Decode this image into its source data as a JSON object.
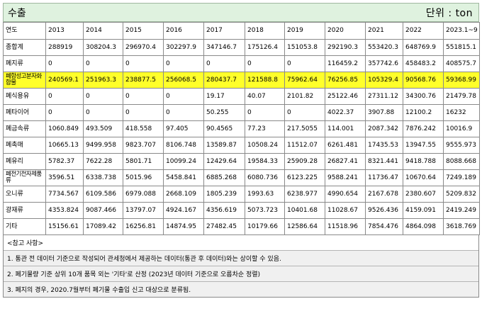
{
  "header": {
    "title": "수출",
    "unit": "단위 : ton"
  },
  "table": {
    "columns": [
      "연도",
      "2013",
      "2014",
      "2015",
      "2016",
      "2017",
      "2018",
      "2019",
      "2020",
      "2021",
      "2022",
      "2023.1~9"
    ],
    "rows": [
      {
        "label": "종합계",
        "values": [
          "288919",
          "308204.3",
          "296970.4",
          "302297.9",
          "347146.7",
          "175126.4",
          "151053.8",
          "292190.3",
          "553420.3",
          "648769.9",
          "551815.1"
        ]
      },
      {
        "label": "폐지류",
        "values": [
          "0",
          "0",
          "0",
          "0",
          "0",
          "0",
          "0",
          "116459.2",
          "357742.6",
          "458483.2",
          "408575.7"
        ]
      },
      {
        "label": "폐합성고분자화합물",
        "values": [
          "240569.1",
          "251963.3",
          "238877.5",
          "256068.5",
          "280437.7",
          "121588.8",
          "75962.64",
          "76256.85",
          "105329.4",
          "90568.76",
          "59368.99"
        ],
        "highlight": true
      },
      {
        "label": "폐식용유",
        "values": [
          "0",
          "0",
          "0",
          "0",
          "19.17",
          "40.07",
          "2101.82",
          "25122.46",
          "27311.12",
          "34300.76",
          "21479.78"
        ]
      },
      {
        "label": "폐타이어",
        "values": [
          "0",
          "0",
          "0",
          "0",
          "50.255",
          "0",
          "0",
          "4022.37",
          "3907.88",
          "12100.2",
          "16232"
        ]
      },
      {
        "label": "폐금속류",
        "values": [
          "1060.849",
          "493.509",
          "418.558",
          "97.405",
          "90.4565",
          "77.23",
          "217.5055",
          "114.001",
          "2087.342",
          "7876.242",
          "10016.9"
        ]
      },
      {
        "label": "폐촉매",
        "values": [
          "10665.13",
          "9499.958",
          "9823.707",
          "8106.748",
          "13589.87",
          "10508.24",
          "11512.07",
          "6261.481",
          "17435.53",
          "13947.55",
          "9555.973"
        ]
      },
      {
        "label": "폐유리",
        "values": [
          "5782.37",
          "7622.28",
          "5801.71",
          "10099.24",
          "12429.64",
          "19584.33",
          "25909.28",
          "26827.41",
          "8321.441",
          "9418.788",
          "8088.668"
        ]
      },
      {
        "label": "폐전기전자제품류",
        "values": [
          "3596.51",
          "6338.738",
          "5015.96",
          "5458.841",
          "6885.268",
          "6080.736",
          "6123.225",
          "9588.241",
          "11736.47",
          "10670.64",
          "7249.189"
        ]
      },
      {
        "label": "오니류",
        "values": [
          "7734.567",
          "6109.586",
          "6979.088",
          "2668.109",
          "1805.239",
          "1993.63",
          "6238.977",
          "4990.654",
          "2167.678",
          "2380.607",
          "5209.832"
        ]
      },
      {
        "label": "광재류",
        "values": [
          "4353.824",
          "9087.466",
          "13797.07",
          "4924.167",
          "4356.619",
          "5073.723",
          "10401.68",
          "11028.67",
          "9526.436",
          "4159.091",
          "2419.249"
        ]
      },
      {
        "label": "기타",
        "values": [
          "15156.61",
          "17089.42",
          "16256.81",
          "14874.95",
          "27482.45",
          "10179.66",
          "12586.64",
          "11518.96",
          "7854.476",
          "4864.098",
          "3618.769"
        ]
      }
    ]
  },
  "notes": {
    "heading": "<참고 사항>",
    "items": [
      "1. 통관 전 데이터 기준으로 작성되어 관세청에서 제공하는 데이터(통관 후 데이터)와는 상이할 수 있음.",
      "2. 폐기물량 기준 상위 10개 품목 외는 '기타'로 산정 (2023년 데이터 기준으로 오름차순 정렬)",
      "3. 폐지의 경우, 2020.7월부터 폐기물 수출입 신고 대상으로 분류됨."
    ]
  }
}
